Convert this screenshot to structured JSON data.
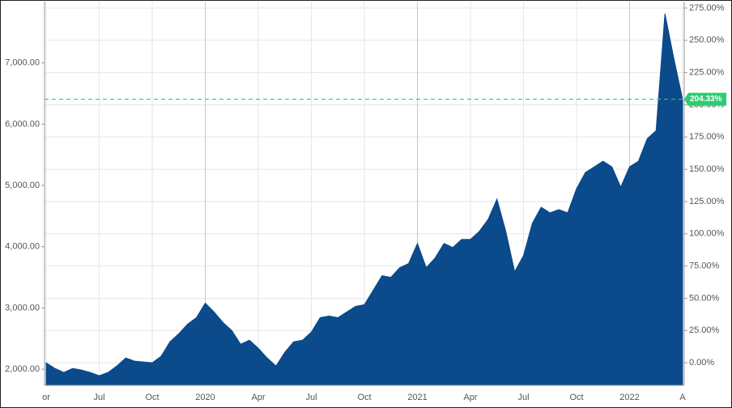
{
  "chart_data": {
    "type": "area",
    "categories": [
      "or",
      null,
      null,
      null,
      null,
      null,
      "Jul",
      null,
      null,
      null,
      null,
      null,
      "Oct",
      null,
      null,
      null,
      null,
      null,
      "2020",
      null,
      null,
      null,
      null,
      null,
      "Apr",
      null,
      null,
      null,
      null,
      null,
      "Jul",
      null,
      null,
      null,
      null,
      null,
      "Oct",
      null,
      null,
      null,
      null,
      null,
      "2021",
      null,
      null,
      null,
      null,
      null,
      "Apr",
      null,
      null,
      null,
      null,
      null,
      "Jul",
      null,
      null,
      null,
      null,
      null,
      "Oct",
      null,
      null,
      null,
      null,
      null,
      "2022",
      null,
      null,
      null,
      null,
      null,
      "A"
    ],
    "values": [
      2105,
      2013,
      1947,
      2013,
      1987,
      1947,
      1895,
      1947,
      2053,
      2184,
      2132,
      2118,
      2105,
      2211,
      2447,
      2579,
      2737,
      2842,
      3079,
      2934,
      2763,
      2632,
      2408,
      2474,
      2342,
      2184,
      2053,
      2276,
      2447,
      2474,
      2605,
      2842,
      2868,
      2842,
      2934,
      3026,
      3053,
      3289,
      3526,
      3500,
      3658,
      3724,
      4053,
      3658,
      3816,
      4053,
      3987,
      4118,
      4118,
      4250,
      4447,
      4776,
      4250,
      3592,
      3855,
      4382,
      4645,
      4553,
      4605,
      4553,
      4947,
      5211,
      5303,
      5395,
      5303,
      4974,
      5303,
      5395,
      5763,
      5895,
      7803,
      7079,
      6406
    ],
    "color": "#0b4a8b",
    "ylim": [
      1737,
      8000
    ],
    "yticks": [
      {
        "value": 2000,
        "label": "2,000.00"
      },
      {
        "value": 3000,
        "label": "3,000.00"
      },
      {
        "value": 4000,
        "label": "4,000.00"
      },
      {
        "value": 5000,
        "label": "5,000.00"
      },
      {
        "value": 6000,
        "label": "6,000.00"
      },
      {
        "value": 7000,
        "label": "7,000.00"
      }
    ],
    "y2lim": [
      -17.5,
      280
    ],
    "y2ticks": [
      {
        "value": 0,
        "label": "0.00%"
      },
      {
        "value": 25,
        "label": "25.00%"
      },
      {
        "value": 50,
        "label": "50.00%"
      },
      {
        "value": 75,
        "label": "75.00%"
      },
      {
        "value": 100,
        "label": "100.00%"
      },
      {
        "value": 125,
        "label": "125.00%"
      },
      {
        "value": 150,
        "label": "150.00%"
      },
      {
        "value": 175,
        "label": "175.00%"
      },
      {
        "value": 200,
        "label": "200.00%"
      },
      {
        "value": 225,
        "label": "225.00%"
      },
      {
        "value": 250,
        "label": "250.00%"
      },
      {
        "value": 275,
        "label": "275.00%"
      }
    ],
    "reference": {
      "value": 204.33,
      "label": "204.33%",
      "color": "#2ecc71"
    },
    "grid": true
  }
}
